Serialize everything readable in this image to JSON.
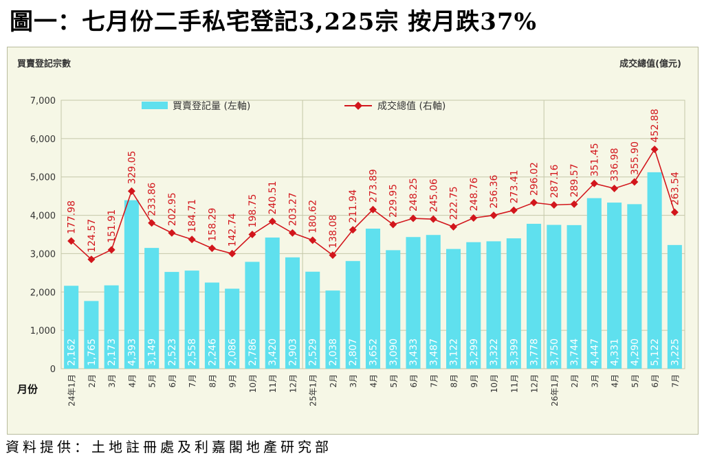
{
  "headline": "圖一：七月份二手私宅登記3,225宗 按月跌37%",
  "source": "資料提供：土地註冊處及利嘉閣地產研究部",
  "chart_data": {
    "type": "bar+line",
    "left_axis_title": "買賣登記宗數",
    "right_axis_title": "成交總值(億元)",
    "x_axis_title": "月份",
    "ylim": [
      0,
      7000
    ],
    "y_ticks": [
      "0",
      "1,000",
      "2,000",
      "3,000",
      "4,000",
      "5,000",
      "6,000",
      "7,000"
    ],
    "categories": [
      "24年1月",
      "2月",
      "3月",
      "4月",
      "5月",
      "6月",
      "7月",
      "8月",
      "9月",
      "10月",
      "11月",
      "12月",
      "25年1月",
      "2月",
      "3月",
      "4月",
      "5月",
      "6月",
      "7月",
      "8月",
      "9月",
      "10月",
      "11月",
      "12月",
      "26年1月",
      "2月",
      "3月",
      "4月",
      "5月",
      "6月",
      "7月"
    ],
    "series": [
      {
        "name": "買賣登記量 (左軸)",
        "type": "bar",
        "axis": "left",
        "color": "#5fe0ee",
        "values": [
          2162,
          1765,
          2173,
          4393,
          3149,
          2523,
          2558,
          2246,
          2086,
          2786,
          3420,
          2903,
          2529,
          2038,
          2807,
          3652,
          3090,
          3433,
          3487,
          3122,
          3299,
          3322,
          3399,
          3778,
          3750,
          3744,
          4447,
          4331,
          4290,
          5122,
          3225
        ],
        "labels": [
          "2,162",
          "1,765",
          "2,173",
          "4,393",
          "3,149",
          "2,523",
          "2,558",
          "2,246",
          "2,086",
          "2,786",
          "3,420",
          "2,903",
          "2,529",
          "2,038",
          "2,807",
          "3,652",
          "3,090",
          "3,433",
          "3,487",
          "3,122",
          "3,299",
          "3,322",
          "3,399",
          "3,778",
          "3,750",
          "3,744",
          "4,447",
          "4,331",
          "4,290",
          "5,122",
          "3,225"
        ]
      },
      {
        "name": "成交總值 (右軸)",
        "type": "line",
        "axis": "right",
        "color": "#d2161c",
        "values": [
          177.98,
          124.57,
          151.91,
          329.05,
          233.86,
          202.95,
          184.71,
          158.29,
          142.74,
          198.75,
          240.51,
          203.27,
          180.62,
          138.08,
          211.94,
          273.89,
          229.95,
          248.25,
          245.06,
          222.75,
          248.76,
          256.36,
          273.41,
          296.02,
          287.16,
          289.57,
          351.45,
          336.98,
          355.9,
          452.88,
          263.54
        ],
        "labels": [
          "177.98",
          "124.57",
          "151.91",
          "329.05",
          "233.86",
          "202.95",
          "184.71",
          "158.29",
          "142.74",
          "198.75",
          "240.51",
          "203.27",
          "180.62",
          "138.08",
          "211.94",
          "273.89",
          "229.95",
          "248.25",
          "245.06",
          "222.75",
          "248.76",
          "256.36",
          "273.41",
          "296.02",
          "287.16",
          "289.57",
          "351.45",
          "336.98",
          "355.90",
          "452.88",
          "263.54"
        ]
      }
    ],
    "line_plot_values": [
      3330,
      2850,
      3100,
      4630,
      3800,
      3540,
      3370,
      3140,
      3000,
      3500,
      3840,
      3540,
      3350,
      2960,
      3620,
      4150,
      3760,
      3920,
      3900,
      3700,
      3930,
      4000,
      4130,
      4330,
      4270,
      4290,
      4830,
      4700,
      4870,
      5720,
      4080
    ],
    "year_dividers_after": [
      11,
      23
    ],
    "grid": true,
    "legend_placement": "top"
  }
}
